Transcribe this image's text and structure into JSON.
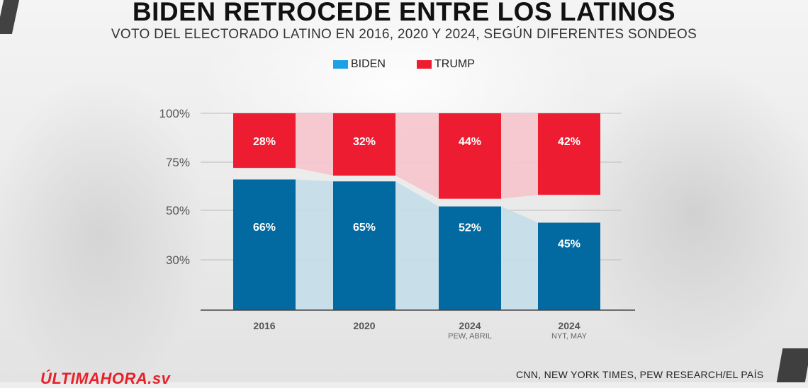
{
  "header": {
    "title": "BIDEN RETROCEDE ENTRE LOS LATINOS",
    "subtitle": "VOTO DEL ELECTORADO LATINO EN 2016, 2020 Y 2024, SEGÚN DIFERENTES SONDEOS"
  },
  "footer": {
    "brand": "ÚLTIMAHORA.sv",
    "source": "CNN, NEW YORK TIMES, PEW RESEARCH/EL PAÍS"
  },
  "colors": {
    "biden": "#026aa0",
    "trump": "#ee1c31",
    "biden_fill": "#c4dde9",
    "trump_fill": "#f6c4cd"
  },
  "chart_data": {
    "type": "bar",
    "stacked": true,
    "categories": [
      "2016",
      "2020",
      "2024",
      "2024"
    ],
    "category_notes": [
      "",
      "",
      "PEW, ABRIL",
      "NYT, MAY"
    ],
    "series": [
      {
        "name": "BIDEN",
        "values": [
          66,
          65,
          52,
          45
        ],
        "labels": [
          "66%",
          "65%",
          "52%",
          "45%"
        ]
      },
      {
        "name": "TRUMP",
        "values": [
          28,
          32,
          44,
          42
        ],
        "labels": [
          "28%",
          "32%",
          "44%",
          "42%"
        ]
      }
    ],
    "y_ticks": [
      {
        "value": 100,
        "label": "100%"
      },
      {
        "value": 75,
        "label": "75%"
      },
      {
        "value": 50,
        "label": "50%"
      },
      {
        "value": 30,
        "label": "30%"
      }
    ],
    "ylim": [
      0,
      100
    ],
    "legend_position": "top-center",
    "grid": true
  }
}
